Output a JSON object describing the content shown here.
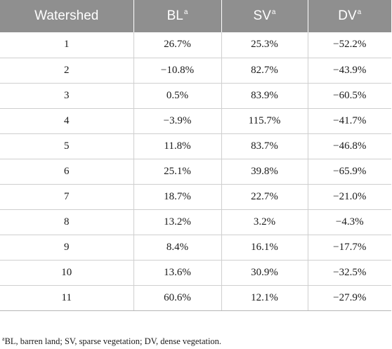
{
  "table": {
    "headers": [
      {
        "label": "Watershed",
        "sup": ""
      },
      {
        "label": "BL",
        "sup": "a"
      },
      {
        "label": "SV",
        "sup": "a"
      },
      {
        "label": "DV",
        "sup": "a"
      }
    ],
    "rows": [
      [
        "1",
        "26.7%",
        "25.3%",
        "−52.2%"
      ],
      [
        "2",
        "−10.8%",
        "82.7%",
        "−43.9%"
      ],
      [
        "3",
        "0.5%",
        "83.9%",
        "−60.5%"
      ],
      [
        "4",
        "−3.9%",
        "115.7%",
        "−41.7%"
      ],
      [
        "5",
        "11.8%",
        "83.7%",
        "−46.8%"
      ],
      [
        "6",
        "25.1%",
        "39.8%",
        "−65.9%"
      ],
      [
        "7",
        "18.7%",
        "22.7%",
        "−21.0%"
      ],
      [
        "8",
        "13.2%",
        "3.2%",
        "−4.3%"
      ],
      [
        "9",
        "8.4%",
        "16.1%",
        "−17.7%"
      ],
      [
        "10",
        "13.6%",
        "30.9%",
        "−32.5%"
      ],
      [
        "11",
        "60.6%",
        "12.1%",
        "−27.9%"
      ]
    ]
  },
  "footnote": {
    "marker": "a",
    "text": "BL, barren land; SV, sparse vegetation; DV, dense vegetation."
  },
  "colors": {
    "header_bg": "#8f8f8f",
    "header_text": "#ffffff",
    "grid_line": "#cfcfcf"
  }
}
